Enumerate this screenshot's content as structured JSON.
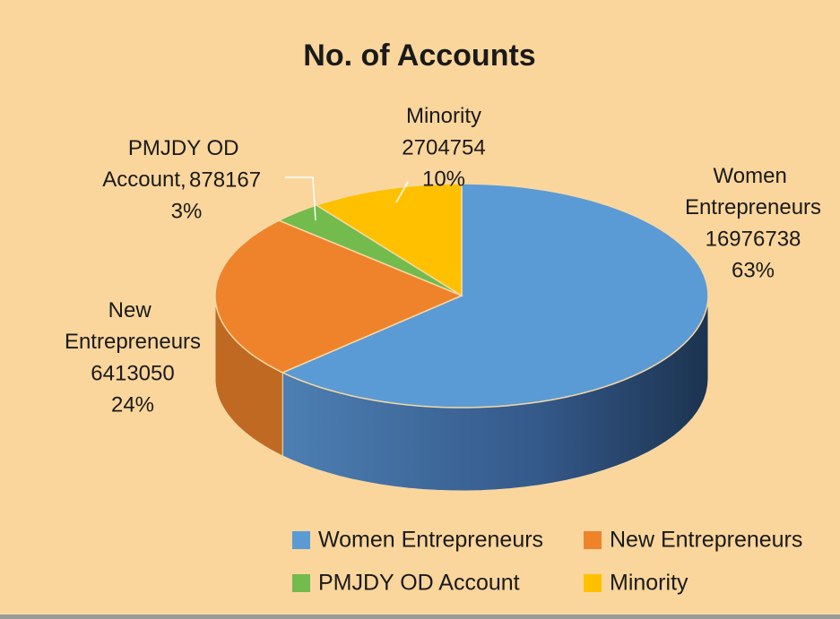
{
  "chart_data": {
    "type": "pie3d",
    "title": "No. of Accounts",
    "categories": [
      "Women Entrepreneurs",
      "New Entrepreneurs",
      "PMJDY OD Account",
      "Minority"
    ],
    "values": [
      16976738,
      6413050,
      878167,
      2704754
    ],
    "percentage_labels": [
      "63%",
      "24%",
      "3%",
      "10%"
    ],
    "label_separator": ", ",
    "colors": [
      "#5b9bd5",
      "#ef832b",
      "#72bb4c",
      "#ffc000"
    ],
    "legend": "bottom"
  }
}
